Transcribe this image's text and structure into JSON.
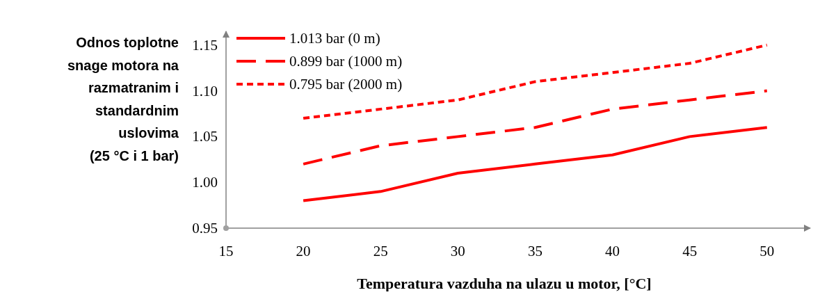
{
  "chart_data": {
    "type": "line",
    "xlabel": "Temperatura vazduha na ulazu u motor, [°C]",
    "ylabel": "Odnos toplotne snage motora na razmatranim i standardnim uslovima (25 °C i 1 bar)",
    "x": [
      20,
      25,
      30,
      35,
      40,
      45,
      50
    ],
    "series": [
      {
        "name": "1.013 bar (0 m)",
        "color": "#ff0000",
        "line_style": "solid",
        "values": [
          0.98,
          0.99,
          1.01,
          1.02,
          1.03,
          1.05,
          1.06
        ]
      },
      {
        "name": "0.899 bar (1000 m)",
        "color": "#ff0000",
        "line_style": "dashed",
        "values": [
          1.02,
          1.04,
          1.05,
          1.06,
          1.08,
          1.09,
          1.1
        ]
      },
      {
        "name": "0.795 bar (2000 m)",
        "color": "#ff0000",
        "line_style": "dotted",
        "values": [
          1.07,
          1.08,
          1.09,
          1.11,
          1.12,
          1.13,
          1.15
        ]
      }
    ],
    "xlim": [
      15,
      52.8
    ],
    "ylim": [
      0.95,
      1.165
    ],
    "xticks": [
      15,
      20,
      25,
      30,
      35,
      40,
      45,
      50
    ],
    "yticks": [
      {
        "value": 0.95,
        "label": "0.95"
      },
      {
        "value": 1.0,
        "label": "1.00"
      },
      {
        "value": 1.05,
        "label": "1.05"
      },
      {
        "value": 1.1,
        "label": "1.10"
      },
      {
        "value": 1.15,
        "label": "1.15"
      }
    ],
    "legend": "top left",
    "grid": false,
    "marker": "none"
  }
}
